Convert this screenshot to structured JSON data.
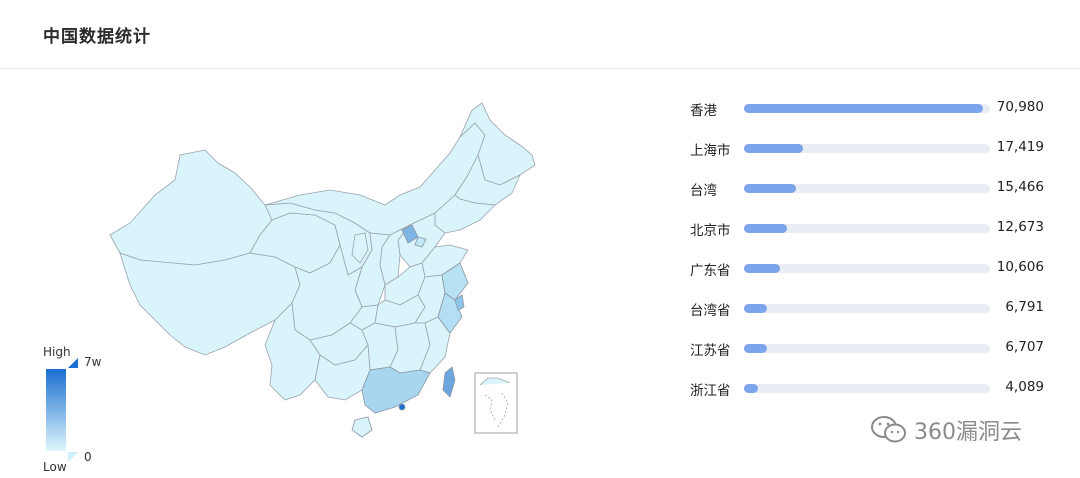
{
  "header": {
    "title": "中国数据统计"
  },
  "legend": {
    "high_label": "High",
    "low_label": "Low",
    "max_label": "7w",
    "min_label": "0"
  },
  "watermark": {
    "text": "360漏洞云"
  },
  "colors": {
    "bar_fill": "#7ba4ea",
    "bar_track": "#ebedf5",
    "map_base": "#d9f4fb",
    "map_border": "#9aa3ad"
  },
  "chart_data": [
    {
      "type": "bar",
      "orientation": "horizontal",
      "categories": [
        "香港",
        "上海市",
        "台湾",
        "北京市",
        "广东省",
        "台湾省",
        "江苏省",
        "浙江省"
      ],
      "values": [
        70980,
        17419,
        15466,
        12673,
        10606,
        6791,
        6707,
        4089
      ],
      "value_labels": [
        "70,980",
        "17,419",
        "15,466",
        "12,673",
        "10,606",
        "6,791",
        "6,707",
        "4,089"
      ],
      "xlim": [
        0,
        73000
      ]
    },
    {
      "type": "heatmap",
      "subtype": "choropleth",
      "color_range": [
        0,
        70000
      ],
      "highlighted_regions": [
        "广东省",
        "北京市",
        "上海市",
        "台湾",
        "香港",
        "江苏省",
        "浙江省"
      ]
    }
  ]
}
